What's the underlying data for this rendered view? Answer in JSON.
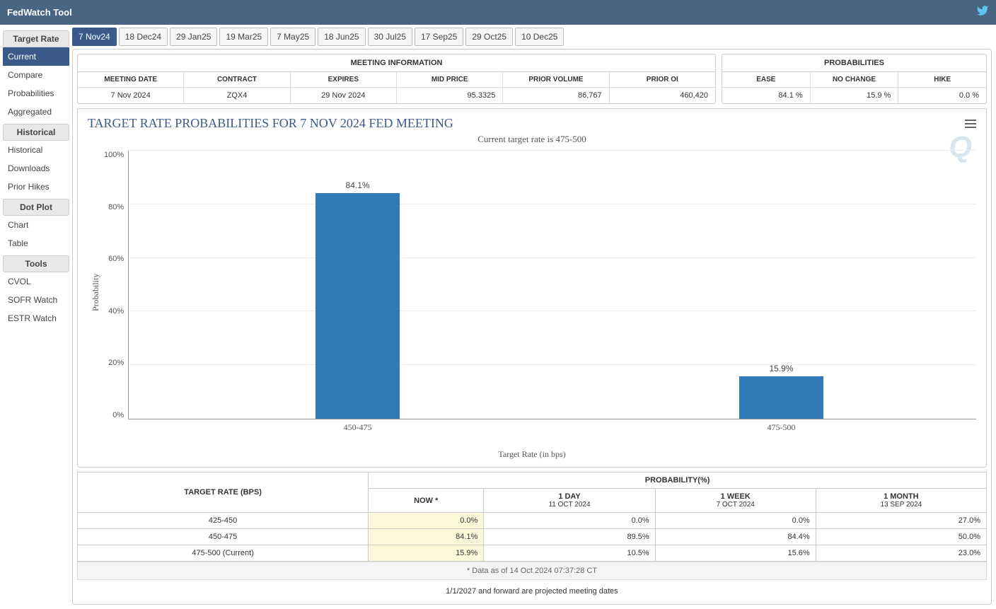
{
  "header": {
    "title": "FedWatch Tool"
  },
  "sidebar": {
    "sections": [
      {
        "title": "Target Rate",
        "items": [
          "Current",
          "Compare",
          "Probabilities",
          "Aggregated"
        ],
        "activeIndex": 0
      },
      {
        "title": "Historical",
        "items": [
          "Historical",
          "Downloads",
          "Prior Hikes"
        ],
        "activeIndex": -1
      },
      {
        "title": "Dot Plot",
        "items": [
          "Chart",
          "Table"
        ],
        "activeIndex": -1
      },
      {
        "title": "Tools",
        "items": [
          "CVOL",
          "SOFR Watch",
          "ESTR Watch"
        ],
        "activeIndex": -1
      }
    ]
  },
  "tabs": {
    "items": [
      "7 Nov24",
      "18 Dec24",
      "29 Jan25",
      "19 Mar25",
      "7 May25",
      "18 Jun25",
      "30 Jul25",
      "17 Sep25",
      "29 Oct25",
      "10 Dec25"
    ],
    "activeIndex": 0
  },
  "meetingInfo": {
    "title": "MEETING INFORMATION",
    "columns": [
      "MEETING DATE",
      "CONTRACT",
      "EXPIRES",
      "MID PRICE",
      "PRIOR VOLUME",
      "PRIOR OI"
    ],
    "values": [
      "7 Nov 2024",
      "ZQX4",
      "29 Nov 2024",
      "95.3325",
      "86,767",
      "460,420"
    ],
    "centerCols": [
      0,
      1,
      2
    ]
  },
  "probabilities": {
    "title": "PROBABILITIES",
    "columns": [
      "EASE",
      "NO CHANGE",
      "HIKE"
    ],
    "values": [
      "84.1 %",
      "15.9 %",
      "0.0 %"
    ]
  },
  "chart": {
    "type": "bar",
    "title": "TARGET RATE PROBABILITIES FOR 7 NOV 2024 FED MEETING",
    "subtitle": "Current target rate is 475-500",
    "ylabel": "Probability",
    "xlabel": "Target Rate (in bps)",
    "ylim": [
      0,
      100
    ],
    "ytick_step": 20,
    "yticks": [
      "0%",
      "20%",
      "40%",
      "60%",
      "80%",
      "100%"
    ],
    "categories": [
      "450-475",
      "475-500"
    ],
    "values": [
      84.1,
      15.9
    ],
    "valueLabels": [
      "84.1%",
      "15.9%"
    ],
    "bar_color": "#2f7ab7",
    "grid_color": "#eeeeee",
    "bar_width_pct": 10,
    "bar_positions_pct": [
      27,
      77
    ],
    "title_fontsize": 18,
    "label_fontsize": 12
  },
  "probTable": {
    "header1": "TARGET RATE (BPS)",
    "header2": "PROBABILITY(%)",
    "periods": [
      {
        "label": "NOW *",
        "sub": ""
      },
      {
        "label": "1 DAY",
        "sub": "11 OCT 2024"
      },
      {
        "label": "1 WEEK",
        "sub": "7 OCT 2024"
      },
      {
        "label": "1 MONTH",
        "sub": "13 SEP 2024"
      }
    ],
    "rows": [
      {
        "rate": "425-450",
        "vals": [
          "0.0%",
          "0.0%",
          "0.0%",
          "27.0%"
        ]
      },
      {
        "rate": "450-475",
        "vals": [
          "84.1%",
          "89.5%",
          "84.4%",
          "50.0%"
        ]
      },
      {
        "rate": "475-500 (Current)",
        "vals": [
          "15.9%",
          "10.5%",
          "15.6%",
          "23.0%"
        ]
      }
    ]
  },
  "footnote": "* Data as of 14 Oct 2024 07:37:28 CT",
  "projected": "1/1/2027 and forward are projected meeting dates"
}
